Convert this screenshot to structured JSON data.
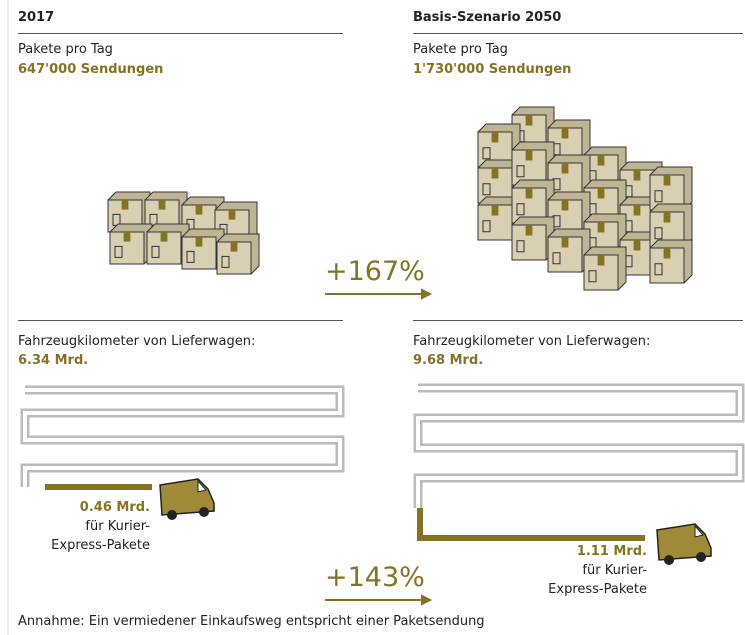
{
  "left": {
    "header": "2017",
    "parcels_label": "Pakete pro Tag",
    "parcels_value": "647'000 Sendungen",
    "km_label": "Fahrzeugkilometer von Lieferwagen:",
    "km_value": "6.34 Mrd.",
    "kep_value": "0.46 Mrd.",
    "kep_text": [
      "für Kurier-",
      "Express-Pakete"
    ]
  },
  "right": {
    "header": "Basis-Szenario 2050",
    "parcels_label": "Pakete pro Tag",
    "parcels_value": "1'730'000 Sendungen",
    "km_label": "Fahrzeugkilometer von Lieferwagen:",
    "km_value": "9.68 Mrd.",
    "kep_value": "1.11 Mrd.",
    "kep_text": [
      "für Kurier-",
      "Express-Pakete"
    ]
  },
  "middle": {
    "parcels_change": "+167%",
    "km_change": "+143%"
  },
  "footnote": "Annahme: Ein vermiedener Einkaufsweg entspricht einer Paketsendung"
}
